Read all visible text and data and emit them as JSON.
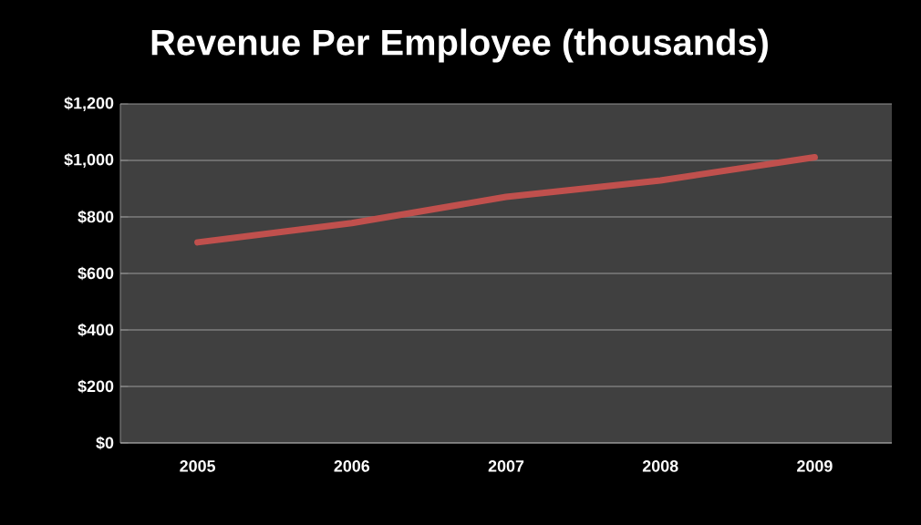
{
  "chart_data": {
    "type": "line",
    "title": "Revenue Per Employee (thousands)",
    "categories": [
      "2005",
      "2006",
      "2007",
      "2008",
      "2009"
    ],
    "series": [
      {
        "color": "#c0504d",
        "values": [
          710,
          778,
          871,
          929,
          1011
        ]
      }
    ],
    "ylim": [
      0,
      1200
    ],
    "yticks": [
      {
        "value": 0,
        "label": "$0"
      },
      {
        "value": 200,
        "label": "$200"
      },
      {
        "value": 400,
        "label": "$400"
      },
      {
        "value": 600,
        "label": "$600"
      },
      {
        "value": 800,
        "label": "$800"
      },
      {
        "value": 1000,
        "label": "$1,000"
      },
      {
        "value": 1200,
        "label": "$1,200"
      }
    ],
    "grid": "y",
    "legend": false,
    "marker": "none",
    "line_style": "solid"
  }
}
